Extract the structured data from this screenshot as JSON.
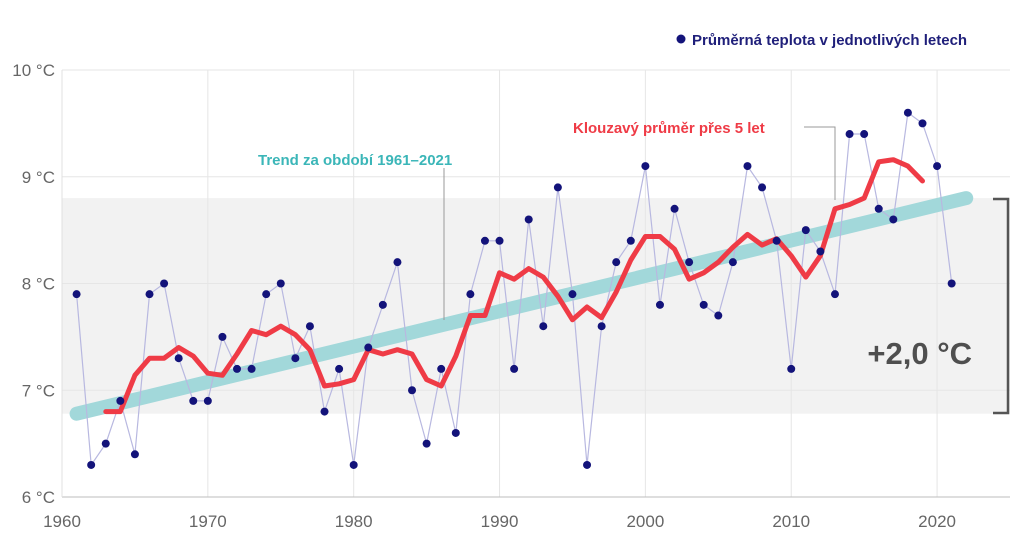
{
  "chart_data": {
    "type": "line",
    "legend": {
      "label": "Průměrná teplota v jednotlivých letech",
      "marker_color": "#13137a"
    },
    "x_ticks": [
      "1960",
      "1970",
      "1980",
      "1990",
      "2000",
      "2010",
      "2020"
    ],
    "y_ticks": [
      "6 °C",
      "7 °C",
      "8 °C",
      "9 °C",
      "10 °C"
    ],
    "xlim": [
      1960,
      2025
    ],
    "ylim": [
      6,
      10
    ],
    "grid": true,
    "series": [
      {
        "name": "Průměrná teplota v jednotlivých letech",
        "style": "points",
        "color": "#13137a",
        "line_color": "#b8b8e0",
        "x": [
          1961,
          1962,
          1963,
          1964,
          1965,
          1966,
          1967,
          1968,
          1969,
          1970,
          1971,
          1972,
          1973,
          1974,
          1975,
          1976,
          1977,
          1978,
          1979,
          1980,
          1981,
          1982,
          1983,
          1984,
          1985,
          1986,
          1987,
          1988,
          1989,
          1990,
          1991,
          1992,
          1993,
          1994,
          1995,
          1996,
          1997,
          1998,
          1999,
          2000,
          2001,
          2002,
          2003,
          2004,
          2005,
          2006,
          2007,
          2008,
          2009,
          2010,
          2011,
          2012,
          2013,
          2014,
          2015,
          2016,
          2017,
          2018,
          2019,
          2020,
          2021
        ],
        "y": [
          7.9,
          6.3,
          6.5,
          6.9,
          6.4,
          7.9,
          8.0,
          7.3,
          6.9,
          6.9,
          7.5,
          7.2,
          7.2,
          7.9,
          8.0,
          7.3,
          7.6,
          6.8,
          7.2,
          6.3,
          7.4,
          7.8,
          8.2,
          7.0,
          6.5,
          7.2,
          6.6,
          7.9,
          8.4,
          8.4,
          7.2,
          8.6,
          7.6,
          8.9,
          7.9,
          6.3,
          7.6,
          8.2,
          8.4,
          9.1,
          7.8,
          8.7,
          8.2,
          7.8,
          7.7,
          8.2,
          9.1,
          8.9,
          8.4,
          7.2,
          8.5,
          8.3,
          7.9,
          9.4,
          9.4,
          8.7,
          8.6,
          9.6,
          9.5,
          9.1,
          8.0
        ]
      },
      {
        "name": "Klouzavý průměr přes 5 let",
        "style": "line",
        "color": "#ef3b46",
        "x": [
          1963,
          1964,
          1965,
          1966,
          1967,
          1968,
          1969,
          1970,
          1971,
          1972,
          1973,
          1974,
          1975,
          1976,
          1977,
          1978,
          1979,
          1980,
          1981,
          1982,
          1983,
          1984,
          1985,
          1986,
          1987,
          1988,
          1989,
          1990,
          1991,
          1992,
          1993,
          1994,
          1995,
          1996,
          1997,
          1998,
          1999,
          2000,
          2001,
          2002,
          2003,
          2004,
          2005,
          2006,
          2007,
          2008,
          2009,
          2010,
          2011,
          2012,
          2013,
          2014,
          2015,
          2016,
          2017,
          2018,
          2019
        ],
        "y": [
          6.8,
          6.8,
          7.14,
          7.3,
          7.3,
          7.4,
          7.32,
          7.16,
          7.14,
          7.34,
          7.56,
          7.52,
          7.6,
          7.52,
          7.38,
          7.04,
          7.06,
          7.1,
          7.38,
          7.34,
          7.38,
          7.34,
          7.1,
          7.04,
          7.32,
          7.7,
          7.7,
          8.1,
          8.04,
          8.14,
          8.06,
          7.88,
          7.66,
          7.78,
          7.68,
          7.92,
          8.22,
          8.44,
          8.44,
          8.32,
          8.04,
          8.1,
          8.2,
          8.34,
          8.46,
          8.36,
          8.42,
          8.26,
          8.06,
          8.26,
          8.7,
          8.74,
          8.8,
          9.14,
          9.16,
          9.1,
          8.96
        ]
      },
      {
        "name": "Trend za období 1961–2021",
        "style": "trend",
        "color": "#a2d8da",
        "x": [
          1961,
          2022
        ],
        "y": [
          6.78,
          8.8
        ]
      }
    ],
    "band": {
      "y_from": 6.78,
      "y_to": 8.8,
      "color": "#f2f2f2"
    },
    "annotations": {
      "moving_average": "Klouzavý průměr přes 5 let",
      "trend": "Trend za období 1961–2021",
      "delta": "+2,0 °C"
    }
  }
}
